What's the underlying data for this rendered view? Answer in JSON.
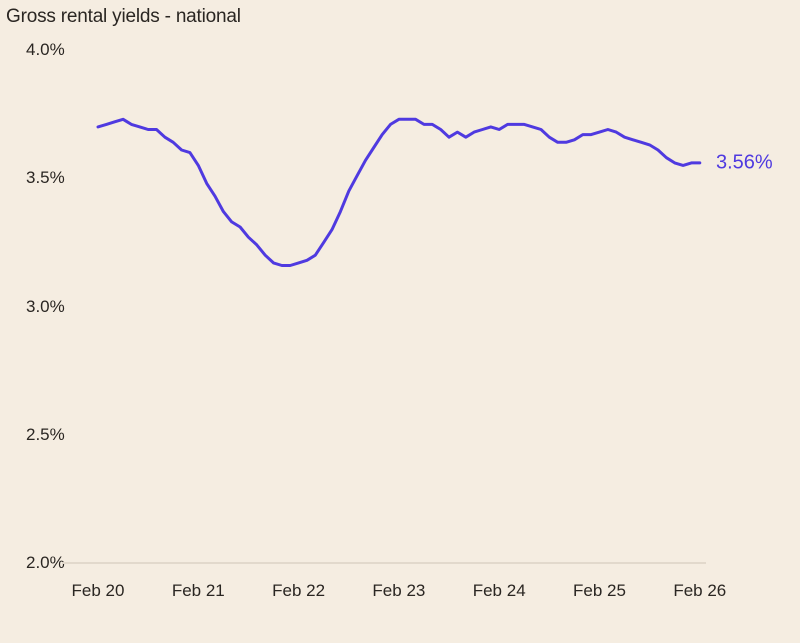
{
  "chart_data": {
    "type": "line",
    "title": "Gross rental yields - national",
    "xlabel": "",
    "ylabel": "",
    "ylim": [
      2.0,
      4.0
    ],
    "y_ticks": [
      "4.0%",
      "3.5%",
      "3.0%",
      "2.5%",
      "2.0%"
    ],
    "y_tick_values": [
      4.0,
      3.5,
      3.0,
      2.5,
      2.0
    ],
    "x_ticks": [
      "Feb 20",
      "Feb 21",
      "Feb 22",
      "Feb 23",
      "Feb 24",
      "Feb 25",
      "Feb 26"
    ],
    "grid": false,
    "baseline_gridline": true,
    "legend": null,
    "series": [
      {
        "name": "Gross rental yields - national",
        "color": "#4f3ae0",
        "x": [
          "Feb 20",
          "Mar 20",
          "Apr 20",
          "May 20",
          "Jun 20",
          "Jul 20",
          "Aug 20",
          "Sep 20",
          "Oct 20",
          "Nov 20",
          "Dec 20",
          "Jan 21",
          "Feb 21",
          "Mar 21",
          "Apr 21",
          "May 21",
          "Jun 21",
          "Jul 21",
          "Aug 21",
          "Sep 21",
          "Oct 21",
          "Nov 21",
          "Dec 21",
          "Jan 22",
          "Feb 22",
          "Mar 22",
          "Apr 22",
          "May 22",
          "Jun 22",
          "Jul 22",
          "Aug 22",
          "Sep 22",
          "Oct 22",
          "Nov 22",
          "Dec 22",
          "Jan 23",
          "Feb 23",
          "Mar 23",
          "Apr 23",
          "May 23",
          "Jun 23",
          "Jul 23",
          "Aug 23",
          "Sep 23",
          "Oct 23",
          "Nov 23",
          "Dec 23",
          "Jan 24",
          "Feb 24",
          "Mar 24",
          "Apr 24",
          "May 24",
          "Jun 24",
          "Jul 24",
          "Aug 24",
          "Sep 24",
          "Oct 24",
          "Nov 24",
          "Dec 24",
          "Jan 25",
          "Feb 25",
          "Mar 25",
          "Apr 25",
          "May 25",
          "Jun 25",
          "Jul 25",
          "Aug 25",
          "Sep 25",
          "Oct 25",
          "Nov 25",
          "Dec 25",
          "Jan 26",
          "Feb 26"
        ],
        "values": [
          3.7,
          3.71,
          3.72,
          3.73,
          3.71,
          3.7,
          3.69,
          3.69,
          3.66,
          3.64,
          3.61,
          3.6,
          3.55,
          3.48,
          3.43,
          3.37,
          3.33,
          3.31,
          3.27,
          3.24,
          3.2,
          3.17,
          3.16,
          3.16,
          3.17,
          3.18,
          3.2,
          3.25,
          3.3,
          3.37,
          3.45,
          3.51,
          3.57,
          3.62,
          3.67,
          3.71,
          3.73,
          3.73,
          3.73,
          3.71,
          3.71,
          3.69,
          3.66,
          3.68,
          3.66,
          3.68,
          3.69,
          3.7,
          3.69,
          3.71,
          3.71,
          3.71,
          3.7,
          3.69,
          3.66,
          3.64,
          3.64,
          3.65,
          3.67,
          3.67,
          3.68,
          3.69,
          3.68,
          3.66,
          3.65,
          3.64,
          3.63,
          3.61,
          3.58,
          3.56,
          3.55,
          3.56,
          3.56
        ]
      }
    ],
    "annotations": [
      {
        "text": "3.56%",
        "at": "Feb 26",
        "value": 3.56,
        "color": "#4f3ae0"
      }
    ]
  },
  "labels": {
    "title": "Gross rental yields - national",
    "end_value": "3.56%"
  },
  "colors": {
    "background": "#f5ede1",
    "line": "#4f3ae0",
    "text": "#2a2622",
    "gridline": "#e2d9cc"
  }
}
